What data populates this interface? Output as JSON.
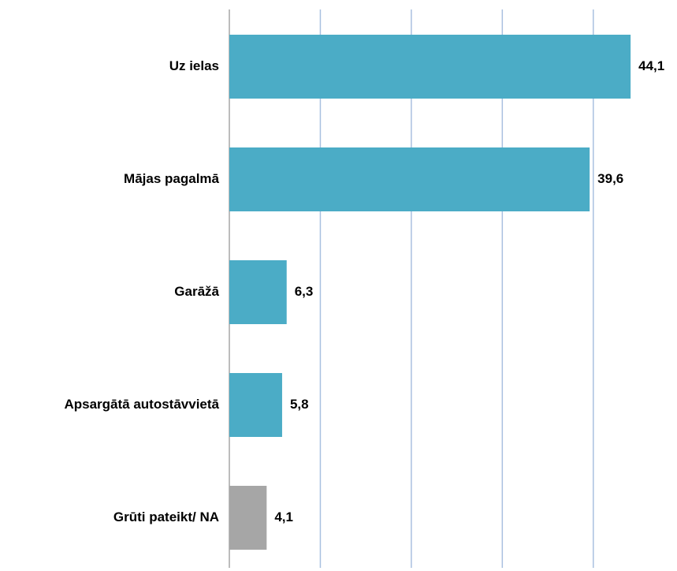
{
  "chart_data": {
    "type": "bar",
    "orientation": "horizontal",
    "categories": [
      "Uz ielas",
      "Mājas pagalmā",
      "Garāžā",
      "Apsargātā autostāvvietā",
      "Grūti pateikt/ NA"
    ],
    "values": [
      44.1,
      39.6,
      6.3,
      5.8,
      4.1
    ],
    "value_labels": [
      "44,1",
      "39,6",
      "6,3",
      "5,8",
      "4,1"
    ],
    "colors": [
      "#4bacc6",
      "#4bacc6",
      "#4bacc6",
      "#4bacc6",
      "#a6a6a6"
    ],
    "xlim": [
      0,
      49.2
    ],
    "xticks": [
      0,
      10,
      20,
      30,
      40
    ],
    "grid": true
  }
}
